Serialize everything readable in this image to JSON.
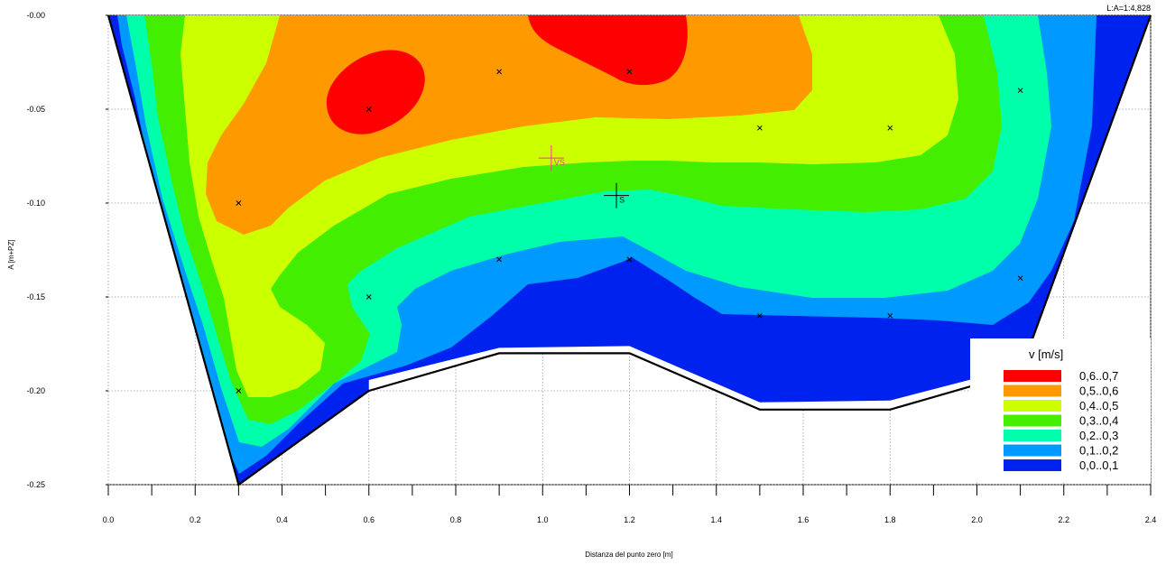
{
  "chart_data": {
    "type": "heatmap",
    "title": "",
    "scale_label": "L:A=1:4,828",
    "xlabel": "Distanza del punto zero [m]",
    "ylabel": "A [m+PZ]",
    "xlim": [
      0.0,
      2.4
    ],
    "ylim": [
      -0.25,
      0.0
    ],
    "x_ticks": [
      0.0,
      0.2,
      0.4,
      0.6,
      0.8,
      1.0,
      1.2,
      1.4,
      1.6,
      1.8,
      2.0,
      2.2,
      2.4
    ],
    "x_tick_labels": [
      "0.0",
      "0.2",
      "0.4",
      "0.6",
      "0.8",
      "1.0",
      "1.2",
      "1.4",
      "1.6",
      "1.8",
      "2.0",
      "2.2",
      "2.4"
    ],
    "y_ticks": [
      0.0,
      -0.05,
      -0.1,
      -0.15,
      -0.2,
      -0.25
    ],
    "y_tick_labels": [
      "-0.00",
      "-0.05",
      "-0.10",
      "-0.15",
      "-0.20",
      "-0.25"
    ],
    "grid": true,
    "legend": {
      "title": "v  [m/s]",
      "position": "bottom-right",
      "entries": [
        {
          "label": "0,6..0,7",
          "color": "#ff0000"
        },
        {
          "label": "0,5..0,6",
          "color": "#ff9900"
        },
        {
          "label": "0,4..0,5",
          "color": "#ccff00"
        },
        {
          "label": "0,3..0,4",
          "color": "#44ee00"
        },
        {
          "label": "0,2..0,3",
          "color": "#00ffaa"
        },
        {
          "label": "0,1..0,2",
          "color": "#0099ff"
        },
        {
          "label": "0,0..0,1",
          "color": "#0022ee"
        }
      ]
    },
    "bed_profile": [
      {
        "x": 0.0,
        "y": 0.0
      },
      {
        "x": 0.3,
        "y": -0.25
      },
      {
        "x": 0.6,
        "y": -0.2
      },
      {
        "x": 0.9,
        "y": -0.18
      },
      {
        "x": 1.2,
        "y": -0.18
      },
      {
        "x": 1.5,
        "y": -0.21
      },
      {
        "x": 1.8,
        "y": -0.21
      },
      {
        "x": 2.1,
        "y": -0.19
      },
      {
        "x": 2.4,
        "y": 0.0
      }
    ],
    "measurement_points": [
      {
        "x": 0.3,
        "y": -0.1
      },
      {
        "x": 0.3,
        "y": -0.2
      },
      {
        "x": 0.6,
        "y": -0.05
      },
      {
        "x": 0.6,
        "y": -0.15
      },
      {
        "x": 0.9,
        "y": -0.03
      },
      {
        "x": 0.9,
        "y": -0.13
      },
      {
        "x": 1.2,
        "y": -0.03
      },
      {
        "x": 1.2,
        "y": -0.13
      },
      {
        "x": 1.5,
        "y": -0.06
      },
      {
        "x": 1.5,
        "y": -0.16
      },
      {
        "x": 1.8,
        "y": -0.06
      },
      {
        "x": 1.8,
        "y": -0.16
      },
      {
        "x": 2.1,
        "y": -0.04
      },
      {
        "x": 2.1,
        "y": -0.14
      }
    ],
    "markers": [
      {
        "label": "VS",
        "x": 1.02,
        "y": -0.076,
        "color": "#ff3399"
      },
      {
        "label": "S",
        "x": 1.17,
        "y": -0.096,
        "color": "#000000"
      }
    ]
  }
}
